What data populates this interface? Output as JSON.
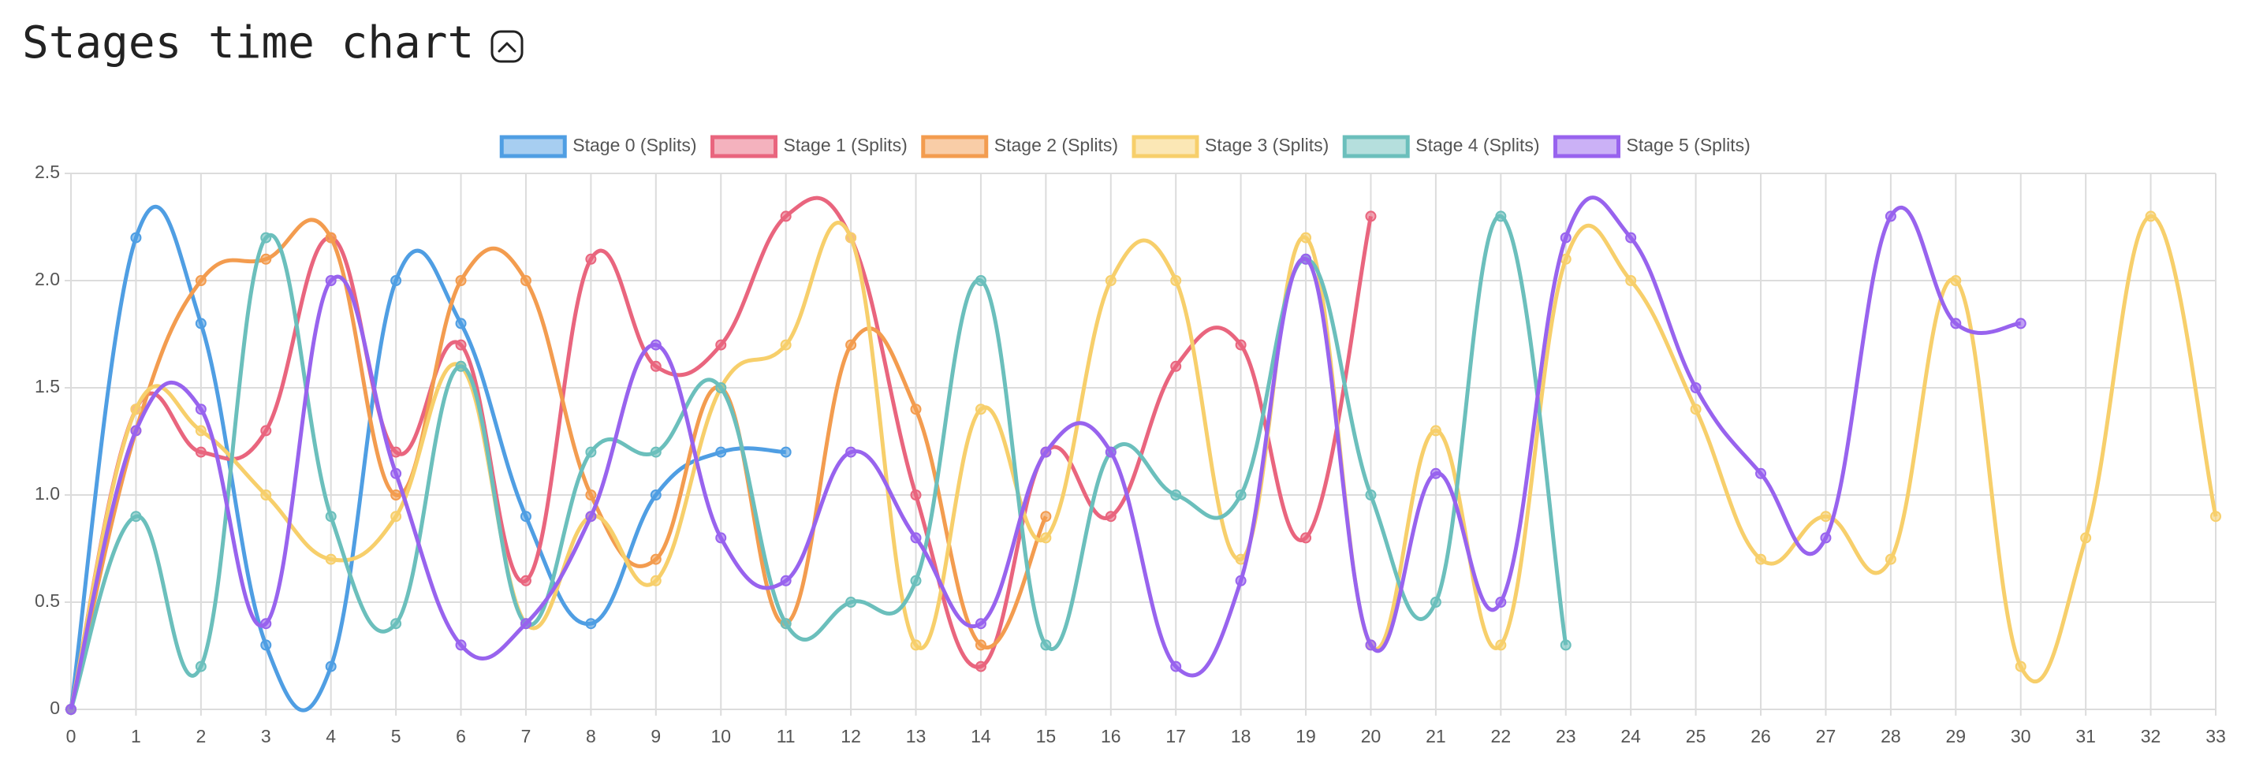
{
  "chart_data": {
    "type": "line",
    "title": "Stages time chart",
    "categories": [
      0,
      1,
      2,
      3,
      4,
      5,
      6,
      7,
      8,
      9,
      10,
      11,
      12,
      13,
      14,
      15,
      16,
      17,
      18,
      19,
      20,
      21,
      22,
      23,
      24,
      25,
      26,
      27,
      28,
      29,
      30,
      31,
      32,
      33
    ],
    "ylim": [
      0,
      2.5
    ],
    "yticks": [
      0,
      0.5,
      {
        "value": 1,
        "label": "1.0"
      },
      1.5,
      {
        "value": 2,
        "label": "2.0"
      },
      2.5
    ],
    "grid": true,
    "legend": "top",
    "series": [
      {
        "name": "Stage 0 (Splits)",
        "color": "#4f9ee3",
        "values": [
          0,
          2.2,
          1.8,
          0.3,
          0.2,
          2.0,
          1.8,
          0.9,
          0.4,
          1.0,
          1.2,
          1.2,
          null,
          null,
          null,
          null,
          null,
          null,
          null,
          null,
          null,
          null,
          null,
          null,
          null,
          null,
          null,
          null,
          null,
          null,
          null,
          null,
          null,
          null
        ]
      },
      {
        "name": "Stage 1 (Splits)",
        "color": "#e9657e",
        "values": [
          0,
          1.4,
          1.2,
          1.3,
          2.2,
          1.2,
          1.7,
          0.6,
          2.1,
          1.6,
          1.7,
          2.3,
          2.2,
          1.0,
          0.2,
          1.2,
          0.9,
          1.6,
          1.7,
          0.8,
          2.3,
          null,
          null,
          null,
          null,
          null,
          null,
          null,
          null,
          null,
          null,
          null,
          null,
          null
        ]
      },
      {
        "name": "Stage 2 (Splits)",
        "color": "#f39c4f",
        "values": [
          0,
          1.3,
          2.0,
          2.1,
          2.2,
          1.0,
          2.0,
          2.0,
          1.0,
          0.7,
          1.5,
          0.4,
          1.7,
          1.4,
          0.3,
          0.9,
          null,
          null,
          null,
          null,
          null,
          null,
          null,
          null,
          null,
          null,
          null,
          null,
          null,
          null,
          null,
          null,
          null,
          null
        ]
      },
      {
        "name": "Stage 3 (Splits)",
        "color": "#f7cf6b",
        "values": [
          0,
          1.4,
          1.3,
          1.0,
          0.7,
          0.9,
          1.6,
          0.4,
          0.9,
          0.6,
          1.5,
          1.7,
          2.2,
          0.3,
          1.4,
          0.8,
          2.0,
          2.0,
          0.7,
          2.2,
          0.3,
          1.3,
          0.3,
          2.1,
          2.0,
          1.4,
          0.7,
          0.9,
          0.7,
          2.0,
          0.2,
          0.8,
          2.3,
          0.9
        ]
      },
      {
        "name": "Stage 4 (Splits)",
        "color": "#6bbfbc",
        "values": [
          0,
          0.9,
          0.2,
          2.2,
          0.9,
          0.4,
          1.6,
          0.4,
          1.2,
          1.2,
          1.5,
          0.4,
          0.5,
          0.6,
          2.0,
          0.3,
          1.2,
          1.0,
          1.0,
          2.1,
          1.0,
          0.5,
          2.3,
          0.3,
          null,
          null,
          null,
          null,
          null,
          null,
          null,
          null,
          null,
          null
        ]
      },
      {
        "name": "Stage 5 (Splits)",
        "color": "#9863ee",
        "values": [
          0,
          1.3,
          1.4,
          0.4,
          2.0,
          1.1,
          0.3,
          0.4,
          0.9,
          1.7,
          0.8,
          0.6,
          1.2,
          0.8,
          0.4,
          1.2,
          1.2,
          0.2,
          0.6,
          2.1,
          0.3,
          1.1,
          0.5,
          2.2,
          2.2,
          1.5,
          1.1,
          0.8,
          2.3,
          1.8,
          1.8,
          null,
          null,
          null
        ]
      }
    ]
  }
}
